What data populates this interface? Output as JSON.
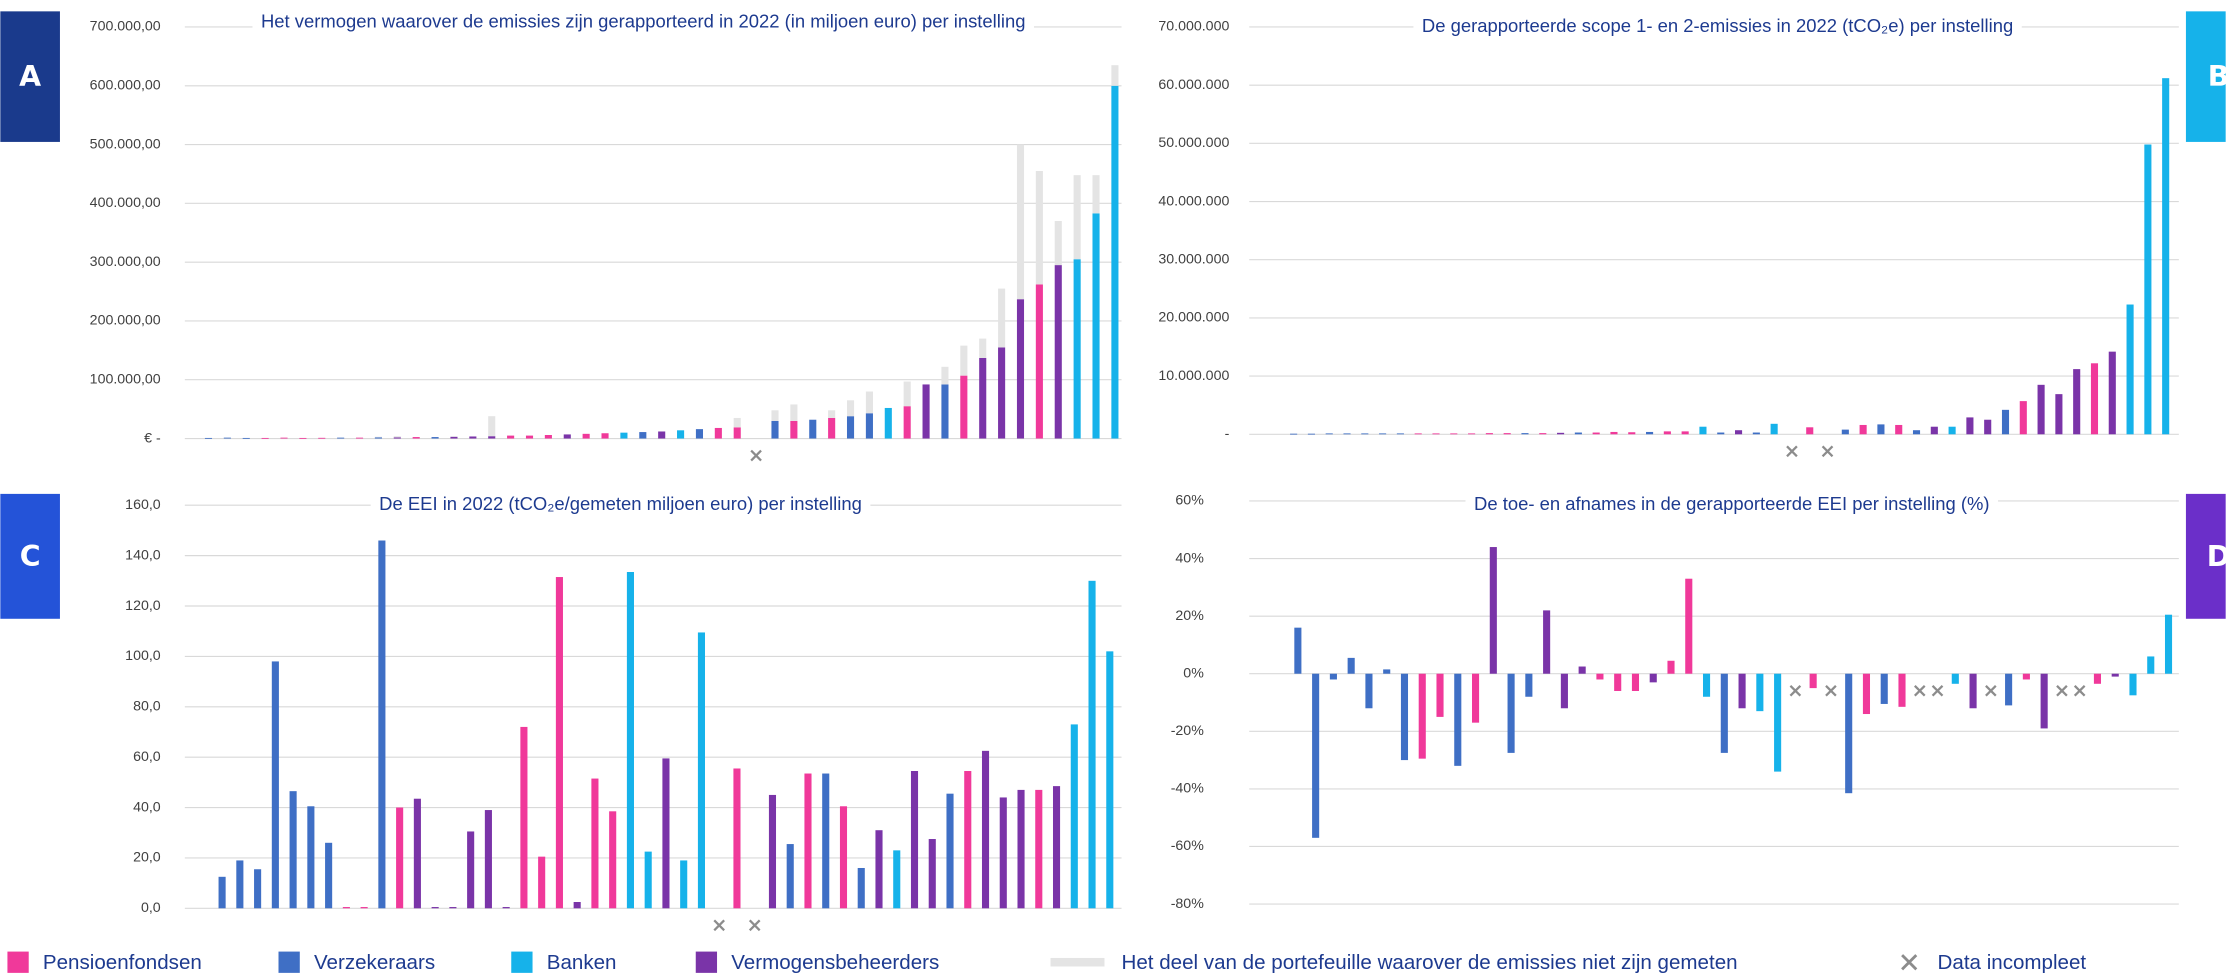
{
  "legend": [
    {
      "name": "Pensioenfondsen",
      "color": "#f0399a"
    },
    {
      "name": "Verzekeraars",
      "color": "#3f6fc5"
    },
    {
      "name": "Banken",
      "color": "#16b2ea"
    },
    {
      "name": "Vermogensbeheerders",
      "color": "#7a34a8"
    },
    {
      "name": "Het deel van de portefeuille waarover de emissies niet zijn gemeten",
      "color": "#e4e4e4"
    },
    {
      "name": "Data incompleet",
      "color": "#8c8c8c"
    }
  ],
  "chart_data": [
    {
      "type": "bar",
      "label": "A",
      "label_color": "#1a3a8c",
      "title": "Het vermogen waarover de emissies zijn gerapporteerd in 2022 (in miljoen euro) per instelling",
      "values": [
        1000,
        1500,
        1000,
        1000,
        1500,
        1000,
        1200,
        1500,
        1500,
        2000,
        2000,
        2500,
        2500,
        3000,
        3500,
        4000,
        5000,
        5000,
        6000,
        7000,
        8000,
        9000,
        10000,
        11000,
        12000,
        14000,
        16000,
        18000,
        19000,
        null,
        30000,
        30000,
        32000,
        35000,
        38000,
        43000,
        52000,
        55000,
        92000,
        92000,
        107000,
        137000,
        155000,
        237000,
        262000,
        295000,
        305000,
        383000,
        600000
      ],
      "colors": [
        "#3f6fc5",
        "#3f6fc5",
        "#3f6fc5",
        "#f0399a",
        "#f0399a",
        "#f0399a",
        "#f0399a",
        "#3f6fc5",
        "#f0399a",
        "#3f6fc5",
        "#7a34a8",
        "#f0399a",
        "#3f6fc5",
        "#7a34a8",
        "#7a34a8",
        "#7a34a8",
        "#f0399a",
        "#f0399a",
        "#f0399a",
        "#7a34a8",
        "#f0399a",
        "#f0399a",
        "#16b2ea",
        "#3f6fc5",
        "#7a34a8",
        "#16b2ea",
        "#3f6fc5",
        "#f0399a",
        "#f0399a",
        "#8c8c8c",
        "#3f6fc5",
        "#f0399a",
        "#3f6fc5",
        "#f0399a",
        "#3f6fc5",
        "#3f6fc5",
        "#16b2ea",
        "#f0399a",
        "#7a34a8",
        "#3f6fc5",
        "#f0399a",
        "#7a34a8",
        "#7a34a8",
        "#7a34a8",
        "#f0399a",
        "#7a34a8",
        "#16b2ea",
        "#16b2ea",
        "#16b2ea"
      ],
      "unmeasured_values": [
        0,
        0,
        0,
        0,
        0,
        0,
        0,
        0,
        0,
        1000,
        2000,
        0,
        0,
        1000,
        0,
        34000,
        0,
        0,
        0,
        0,
        0,
        0,
        0,
        0,
        0,
        0,
        0,
        0,
        16000,
        null,
        18000,
        28000,
        0,
        13000,
        27000,
        37000,
        0,
        42000,
        0,
        30000,
        51000,
        33000,
        100000,
        263000,
        193000,
        75000,
        143000,
        65000,
        35000
      ],
      "unmeasured_color": "#e4e4e4",
      "ylim": [
        0,
        700000
      ],
      "yticks": [
        {
          "value": 0,
          "label": "€ -"
        },
        {
          "value": 100000,
          "label": "100.000,00"
        },
        {
          "value": 200000,
          "label": "200.000,00"
        },
        {
          "value": 300000,
          "label": "300.000,00"
        },
        {
          "value": 400000,
          "label": "400.000,00"
        },
        {
          "value": 500000,
          "label": "500.000,00"
        },
        {
          "value": 600000,
          "label": "600.000,00"
        },
        {
          "value": 700000,
          "label": "700.000,00"
        }
      ],
      "grid": true
    },
    {
      "type": "bar",
      "label": "B",
      "label_color": "#16b2ea",
      "title": "De gerapporteerde scope 1- en 2-emissies in 2022 (tCO₂e) per instelling",
      "values": [
        100000,
        100000,
        150000,
        150000,
        150000,
        150000,
        150000,
        150000,
        150000,
        150000,
        150000,
        200000,
        200000,
        200000,
        200000,
        250000,
        300000,
        300000,
        400000,
        350000,
        400000,
        500000,
        500000,
        1300000,
        300000,
        700000,
        300000,
        1800000,
        null,
        1200000,
        null,
        800000,
        1600000,
        1700000,
        1600000,
        700000,
        1300000,
        1300000,
        2900000,
        2500000,
        4200000,
        5700000,
        8500000,
        6900000,
        11200000,
        12200000,
        14200000,
        22300000,
        49800000,
        61200000
      ],
      "colors": [
        "#3f6fc5",
        "#3f6fc5",
        "#3f6fc5",
        "#3f6fc5",
        "#3f6fc5",
        "#3f6fc5",
        "#3f6fc5",
        "#f0399a",
        "#f0399a",
        "#f0399a",
        "#f0399a",
        "#f0399a",
        "#f0399a",
        "#3f6fc5",
        "#f0399a",
        "#7a34a8",
        "#3f6fc5",
        "#f0399a",
        "#f0399a",
        "#f0399a",
        "#3f6fc5",
        "#f0399a",
        "#f0399a",
        "#16b2ea",
        "#3f6fc5",
        "#7a34a8",
        "#3f6fc5",
        "#16b2ea",
        "#8c8c8c",
        "#f0399a",
        "#8c8c8c",
        "#3f6fc5",
        "#f0399a",
        "#3f6fc5",
        "#f0399a",
        "#3f6fc5",
        "#7a34a8",
        "#16b2ea",
        "#7a34a8",
        "#7a34a8",
        "#3f6fc5",
        "#f0399a",
        "#7a34a8",
        "#7a34a8",
        "#7a34a8",
        "#f0399a",
        "#7a34a8",
        "#16b2ea",
        "#16b2ea",
        "#16b2ea"
      ],
      "ylim": [
        0,
        70000000
      ],
      "yticks": [
        {
          "value": 0,
          "label": "-"
        },
        {
          "value": 10000000,
          "label": "10.000.000"
        },
        {
          "value": 20000000,
          "label": "20.000.000"
        },
        {
          "value": 30000000,
          "label": "30.000.000"
        },
        {
          "value": 40000000,
          "label": "40.000.000"
        },
        {
          "value": 50000000,
          "label": "50.000.000"
        },
        {
          "value": 60000000,
          "label": "60.000.000"
        },
        {
          "value": 70000000,
          "label": "70.000.000"
        }
      ],
      "grid": true
    },
    {
      "type": "bar",
      "label": "C",
      "label_color": "#2453d8",
      "title": "De EEI in 2022 (tCO₂e/gemeten miljoen euro) per instelling",
      "values": [
        12.5,
        19,
        15.5,
        98,
        46.5,
        40.5,
        26,
        0.5,
        0.5,
        146,
        40,
        43.5,
        0.5,
        0.5,
        30.5,
        39,
        0.5,
        72,
        20.5,
        131.5,
        2.5,
        51.5,
        38.5,
        133.5,
        22.5,
        59.5,
        19,
        109.5,
        null,
        55.5,
        null,
        45,
        25.5,
        53.5,
        53.5,
        40.5,
        16,
        31,
        23,
        54.5,
        27.5,
        45.5,
        54.5,
        62.5,
        44,
        47,
        47,
        48.5,
        73,
        130,
        102
      ],
      "colors": [
        "#3f6fc5",
        "#3f6fc5",
        "#3f6fc5",
        "#3f6fc5",
        "#3f6fc5",
        "#3f6fc5",
        "#3f6fc5",
        "#f0399a",
        "#f0399a",
        "#3f6fc5",
        "#f0399a",
        "#7a34a8",
        "#7a34a8",
        "#7a34a8",
        "#7a34a8",
        "#7a34a8",
        "#7a34a8",
        "#f0399a",
        "#f0399a",
        "#f0399a",
        "#7a34a8",
        "#f0399a",
        "#f0399a",
        "#16b2ea",
        "#16b2ea",
        "#7a34a8",
        "#16b2ea",
        "#16b2ea",
        "#8c8c8c",
        "#f0399a",
        "#8c8c8c",
        "#7a34a8",
        "#3f6fc5",
        "#f0399a",
        "#3f6fc5",
        "#f0399a",
        "#3f6fc5",
        "#7a34a8",
        "#16b2ea",
        "#7a34a8",
        "#7a34a8",
        "#3f6fc5",
        "#f0399a",
        "#7a34a8",
        "#7a34a8",
        "#7a34a8",
        "#f0399a",
        "#7a34a8",
        "#16b2ea",
        "#16b2ea",
        "#16b2ea"
      ],
      "ylim": [
        0,
        160
      ],
      "yticks": [
        {
          "value": 0,
          "label": "0,0"
        },
        {
          "value": 20,
          "label": "20,0"
        },
        {
          "value": 40,
          "label": "40,0"
        },
        {
          "value": 60,
          "label": "60,0"
        },
        {
          "value": 80,
          "label": "80,0"
        },
        {
          "value": 100,
          "label": "100,0"
        },
        {
          "value": 120,
          "label": "120,0"
        },
        {
          "value": 140,
          "label": "140,0"
        },
        {
          "value": 160,
          "label": "160,0"
        }
      ],
      "grid": true
    },
    {
      "type": "bar",
      "label": "D",
      "label_color": "#6b2fc9",
      "title": "De toe- en afnames in de gerapporteerde EEI per instelling (%)",
      "values": [
        16,
        -57,
        -2,
        5.5,
        -12,
        1.5,
        -30,
        -29.5,
        -15,
        -32,
        -17,
        44,
        -27.5,
        -8,
        22,
        -12,
        2.5,
        -2,
        -6,
        -6,
        -3,
        4.5,
        33,
        -8,
        -27.5,
        -12,
        -13,
        -34,
        null,
        -5,
        null,
        -41.5,
        -14,
        -10.5,
        -11.5,
        null,
        null,
        -3.5,
        -12,
        null,
        -11,
        -2,
        -19,
        null,
        null,
        -3.5,
        -1,
        -7.5,
        6,
        20.5
      ],
      "colors": [
        "#3f6fc5",
        "#3f6fc5",
        "#3f6fc5",
        "#3f6fc5",
        "#3f6fc5",
        "#3f6fc5",
        "#3f6fc5",
        "#f0399a",
        "#f0399a",
        "#3f6fc5",
        "#f0399a",
        "#7a34a8",
        "#3f6fc5",
        "#3f6fc5",
        "#7a34a8",
        "#7a34a8",
        "#7a34a8",
        "#f0399a",
        "#f0399a",
        "#f0399a",
        "#7a34a8",
        "#f0399a",
        "#f0399a",
        "#16b2ea",
        "#3f6fc5",
        "#7a34a8",
        "#16b2ea",
        "#16b2ea",
        "#8c8c8c",
        "#f0399a",
        "#8c8c8c",
        "#3f6fc5",
        "#f0399a",
        "#3f6fc5",
        "#f0399a",
        "#8c8c8c",
        "#8c8c8c",
        "#16b2ea",
        "#7a34a8",
        "#8c8c8c",
        "#3f6fc5",
        "#f0399a",
        "#7a34a8",
        "#8c8c8c",
        "#8c8c8c",
        "#f0399a",
        "#7a34a8",
        "#16b2ea",
        "#16b2ea",
        "#16b2ea"
      ],
      "ylim": [
        -80,
        60
      ],
      "yticks": [
        {
          "value": -80,
          "label": "-80%"
        },
        {
          "value": -60,
          "label": "-60%"
        },
        {
          "value": -40,
          "label": "-40%"
        },
        {
          "value": -20,
          "label": "-20%"
        },
        {
          "value": 0,
          "label": "0%"
        },
        {
          "value": 20,
          "label": "20%"
        },
        {
          "value": 40,
          "label": "40%"
        },
        {
          "value": 60,
          "label": "60%"
        }
      ],
      "grid": true
    }
  ]
}
